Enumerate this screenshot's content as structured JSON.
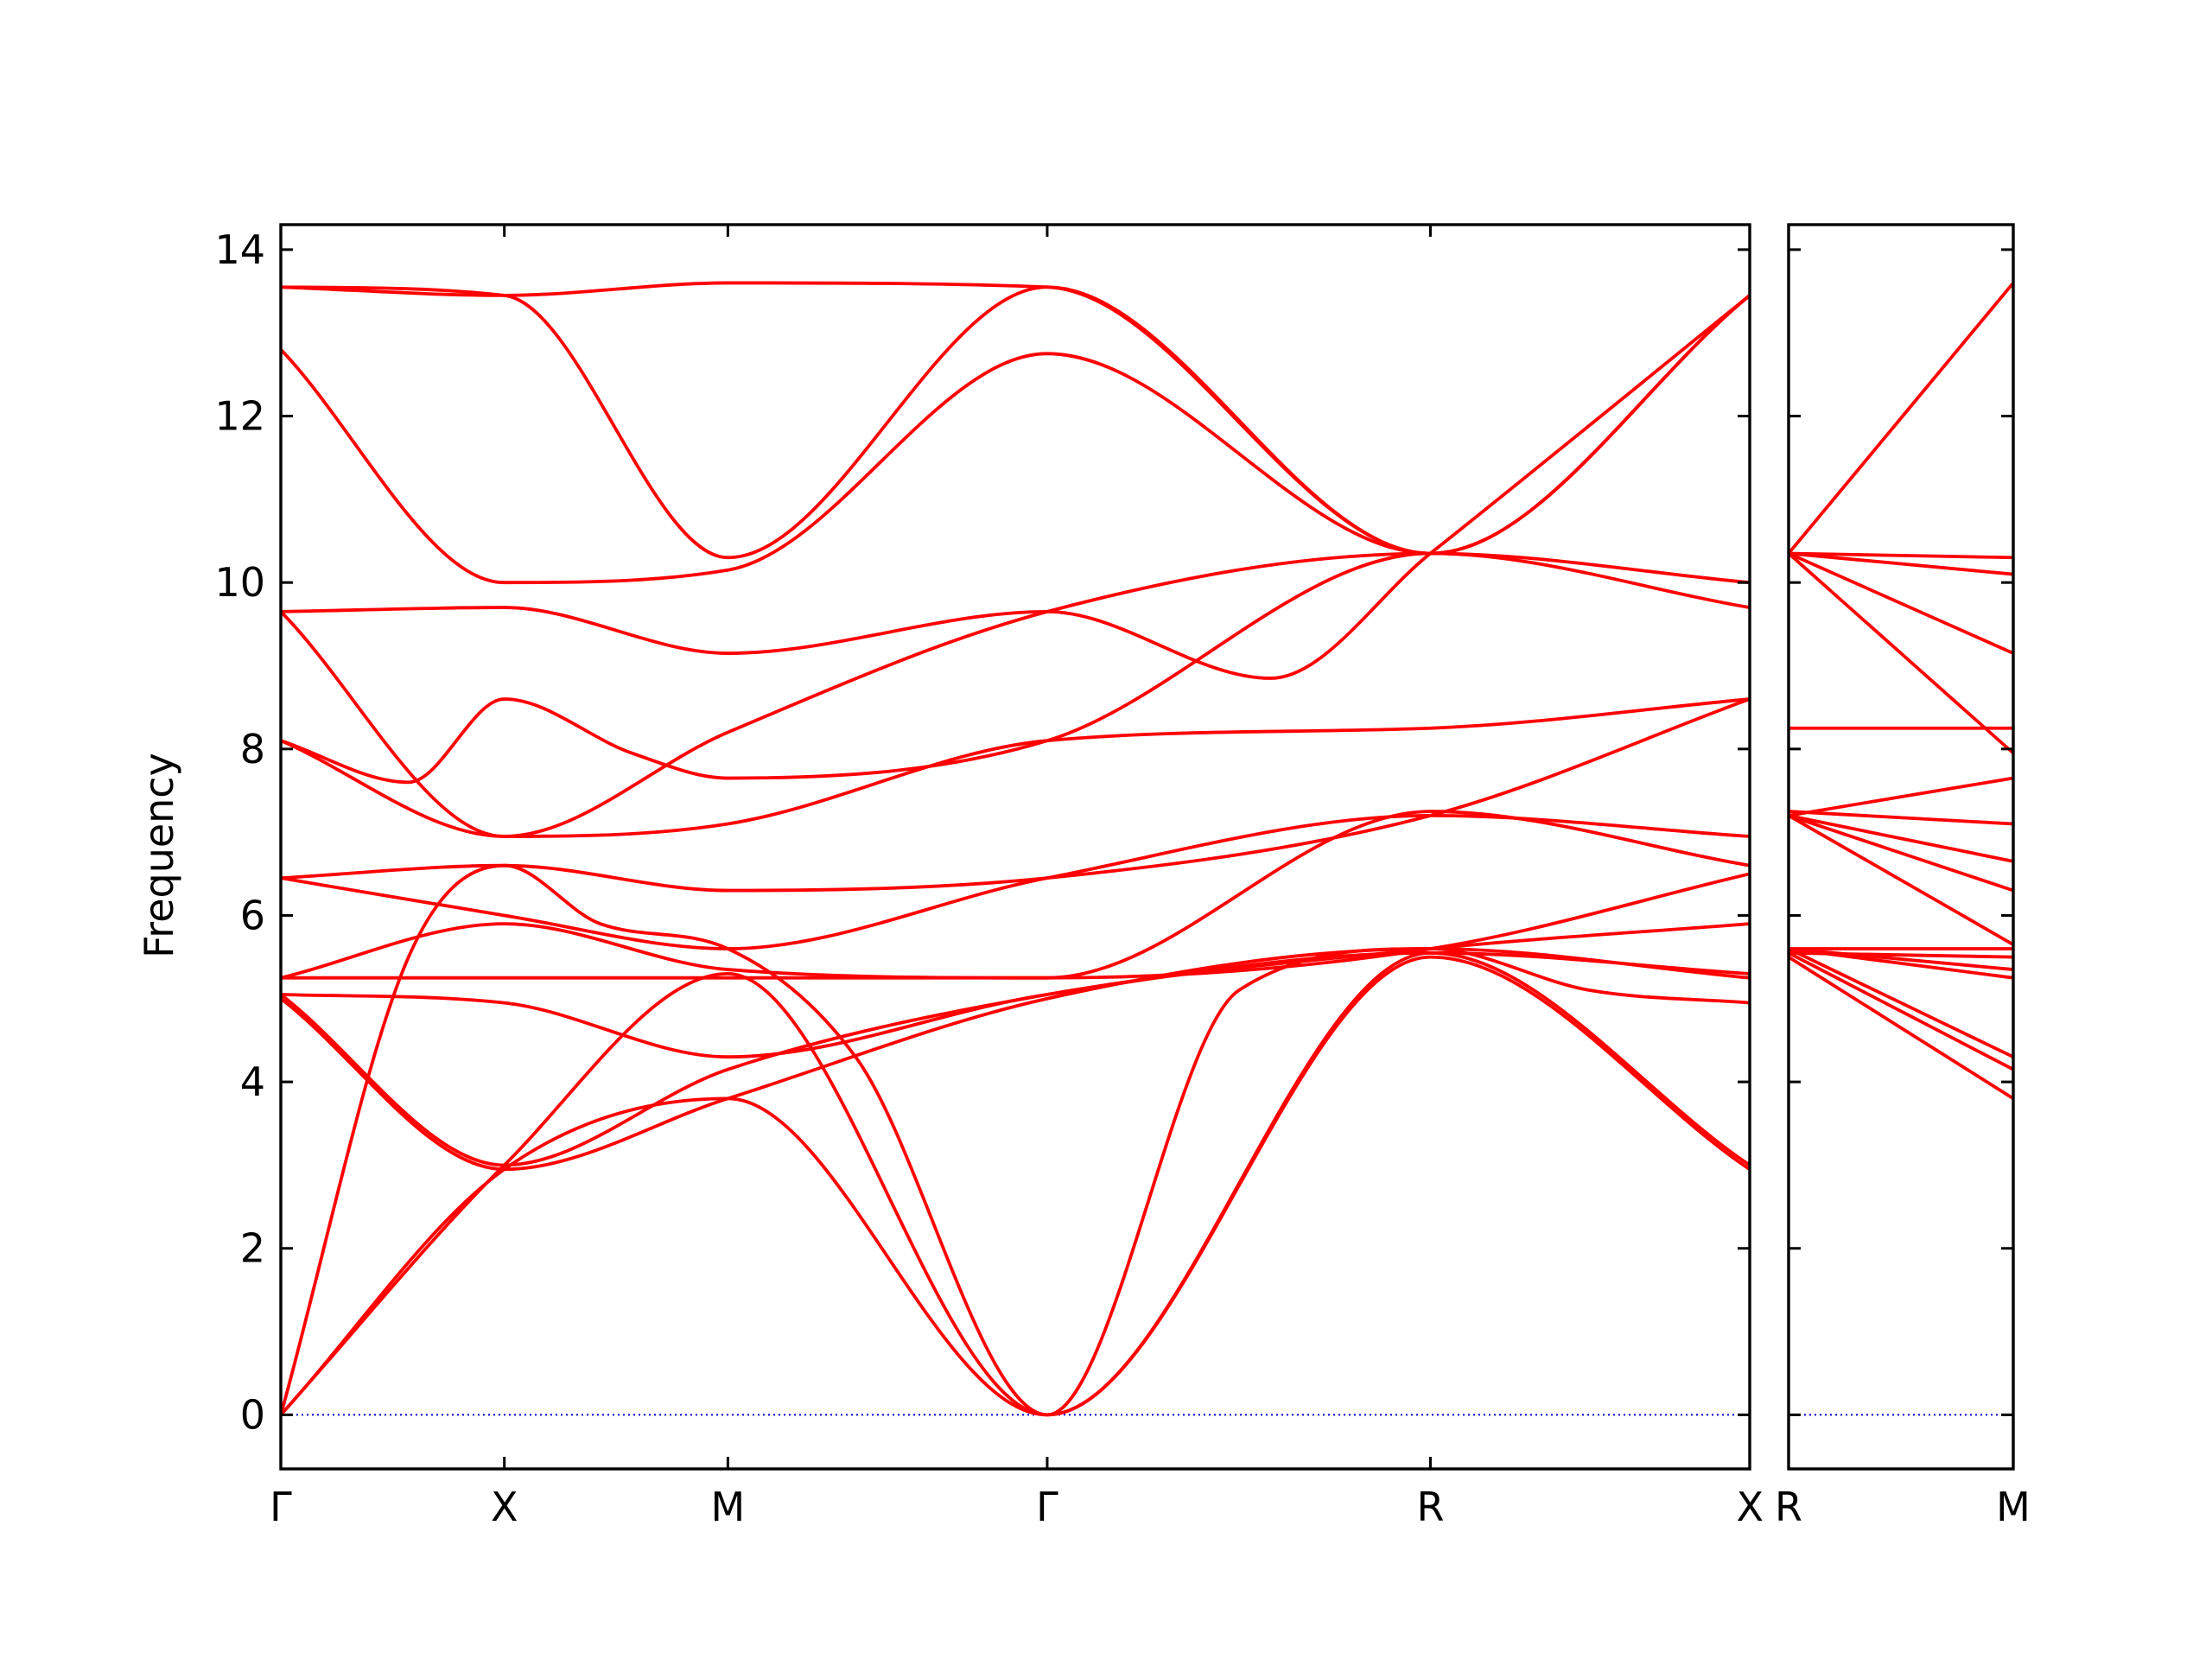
{
  "chart_data": {
    "type": "line",
    "ylabel": "Frequency",
    "ylim": [
      -0.65,
      14.3
    ],
    "yticks": [
      0,
      2,
      4,
      6,
      8,
      10,
      12,
      14
    ],
    "colors": {
      "bands": "#ff0000",
      "zero_line": "#0000cc"
    },
    "grid": false,
    "legend": "none",
    "panels": [
      {
        "xrange": [
          0,
          2.3
        ],
        "ticks": [
          {
            "label": "Γ",
            "x": 0
          },
          {
            "label": "X",
            "x": 0.35
          },
          {
            "label": "M",
            "x": 0.7
          },
          {
            "label": "Γ",
            "x": 1.2
          },
          {
            "label": "R",
            "x": 1.8
          },
          {
            "label": "X",
            "x": 2.3
          }
        ],
        "series": [
          {
            "x": [
              0,
              0.35,
              0.7,
              1.2,
              1.8,
              2.3
            ],
            "values": [
              0,
              2.95,
              3.8,
              0,
              5.5,
              2.95
            ]
          },
          {
            "x": [
              0,
              0.35,
              0.7,
              1.2,
              1.8,
              2.3
            ],
            "values": [
              0,
              3.0,
              5.3,
              0,
              5.55,
              3.0
            ]
          },
          {
            "x": [
              0,
              0.2,
              0.35,
              0.5,
              0.7,
              0.9,
              1.2,
              1.5,
              1.8,
              2.05,
              2.3
            ],
            "values": [
              0,
              5.5,
              6.6,
              5.9,
              5.6,
              4.3,
              0,
              5.1,
              5.6,
              5.1,
              4.95
            ]
          },
          {
            "x": [
              0,
              0.35,
              0.7,
              1.2,
              1.8,
              2.3
            ],
            "values": [
              5.0,
              2.95,
              3.8,
              5.0,
              5.6,
              5.25
            ]
          },
          {
            "x": [
              0,
              0.35,
              0.7,
              1.2,
              1.8,
              2.3
            ],
            "values": [
              5.05,
              3.0,
              4.15,
              5.05,
              5.6,
              5.9
            ]
          },
          {
            "x": [
              0,
              0.35,
              0.7,
              1.2,
              1.8,
              2.3
            ],
            "values": [
              5.05,
              4.95,
              4.3,
              5.05,
              5.55,
              5.3
            ]
          },
          {
            "x": [
              0,
              0.35,
              0.7,
              1.2,
              1.8,
              2.3
            ],
            "values": [
              5.25,
              5.25,
              5.25,
              5.25,
              5.6,
              6.5
            ]
          },
          {
            "x": [
              0,
              0.35,
              0.7,
              1.2,
              1.8,
              2.3
            ],
            "values": [
              5.25,
              5.9,
              5.35,
              5.25,
              7.25,
              6.6
            ]
          },
          {
            "x": [
              0,
              0.35,
              0.7,
              1.2,
              1.8,
              2.3
            ],
            "values": [
              6.45,
              6.0,
              5.6,
              6.45,
              7.2,
              6.95
            ]
          },
          {
            "x": [
              0,
              0.35,
              0.7,
              1.2,
              1.8,
              2.3
            ],
            "values": [
              6.45,
              6.6,
              6.3,
              6.45,
              7.2,
              8.6
            ]
          },
          {
            "x": [
              0,
              0.35,
              0.7,
              1.2,
              1.8,
              2.3
            ],
            "values": [
              8.1,
              6.95,
              7.1,
              8.1,
              8.25,
              8.6
            ]
          },
          {
            "x": [
              0,
              0.2,
              0.35,
              0.55,
              0.7,
              1.2,
              1.8,
              2.3
            ],
            "values": [
              8.1,
              7.6,
              8.6,
              7.95,
              7.65,
              8.1,
              10.35,
              9.7
            ]
          },
          {
            "x": [
              0,
              0.35,
              0.7,
              1.2,
              1.8,
              2.3
            ],
            "values": [
              9.65,
              6.95,
              8.2,
              9.65,
              10.35,
              10.0
            ]
          },
          {
            "x": [
              0,
              0.35,
              0.7,
              1.2,
              1.55,
              1.8,
              2.3
            ],
            "values": [
              9.65,
              9.7,
              9.15,
              9.65,
              8.85,
              10.35,
              13.45
            ]
          },
          {
            "x": [
              0,
              0.35,
              0.7,
              1.2,
              1.8,
              2.3
            ],
            "values": [
              12.8,
              10.0,
              10.15,
              12.75,
              10.35,
              13.45
            ]
          },
          {
            "x": [
              0,
              0.35,
              0.7,
              1.2,
              1.8,
              2.3
            ],
            "values": [
              13.55,
              13.45,
              10.3,
              13.55,
              10.35,
              13.45
            ]
          },
          {
            "x": [
              0,
              0.35,
              0.7,
              1.2,
              1.8,
              2.3
            ],
            "values": [
              13.55,
              13.45,
              13.6,
              13.55,
              10.35,
              13.45
            ]
          }
        ]
      },
      {
        "xrange": [
          1.8,
          2.3
        ],
        "ticks": [
          {
            "label": "R",
            "x": 1.8
          },
          {
            "label": "M",
            "x": 2.3
          }
        ],
        "series": [
          {
            "x": [
              1.8,
              2.3
            ],
            "values": [
              5.5,
              3.8
            ]
          },
          {
            "x": [
              1.8,
              2.3
            ],
            "values": [
              5.55,
              4.15
            ]
          },
          {
            "x": [
              1.8,
              2.3
            ],
            "values": [
              5.6,
              4.3
            ]
          },
          {
            "x": [
              1.8,
              2.3
            ],
            "values": [
              5.6,
              5.25
            ]
          },
          {
            "x": [
              1.8,
              2.3
            ],
            "values": [
              5.6,
              5.35
            ]
          },
          {
            "x": [
              1.8,
              2.3
            ],
            "values": [
              5.55,
              5.5
            ]
          },
          {
            "x": [
              1.8,
              2.3
            ],
            "values": [
              5.6,
              5.6
            ]
          },
          {
            "x": [
              1.8,
              2.3
            ],
            "values": [
              7.2,
              5.65
            ]
          },
          {
            "x": [
              1.8,
              2.3
            ],
            "values": [
              7.2,
              6.3
            ]
          },
          {
            "x": [
              1.8,
              2.3
            ],
            "values": [
              7.2,
              6.65
            ]
          },
          {
            "x": [
              1.8,
              2.3
            ],
            "values": [
              7.25,
              7.1
            ]
          },
          {
            "x": [
              1.8,
              2.3
            ],
            "values": [
              7.2,
              7.65
            ]
          },
          {
            "x": [
              1.8,
              2.3
            ],
            "values": [
              8.25,
              8.25
            ]
          },
          {
            "x": [
              1.8,
              2.3
            ],
            "values": [
              10.35,
              7.95
            ]
          },
          {
            "x": [
              1.8,
              2.3
            ],
            "values": [
              10.35,
              9.15
            ]
          },
          {
            "x": [
              1.8,
              2.3
            ],
            "values": [
              10.35,
              10.1
            ]
          },
          {
            "x": [
              1.8,
              2.3
            ],
            "values": [
              10.35,
              10.3
            ]
          },
          {
            "x": [
              1.8,
              2.3
            ],
            "values": [
              10.35,
              13.6
            ]
          }
        ]
      }
    ]
  }
}
